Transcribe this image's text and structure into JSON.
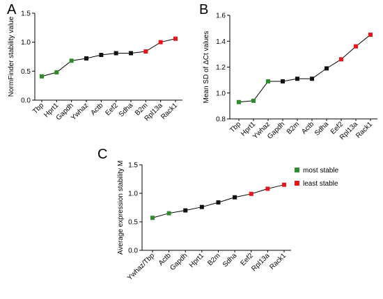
{
  "colors": {
    "most_stable": "#2e8b2e",
    "least_stable": "#e8161b",
    "neutral": "#111111"
  },
  "chart_data": [
    {
      "panel": "A",
      "type": "line",
      "ylabel": "NormFinder stability value",
      "ylim": [
        0,
        1.5
      ],
      "yticks": [
        0.0,
        0.5,
        1.0,
        1.5
      ],
      "categories": [
        "Tbp",
        "Hprt1",
        "Gapdh",
        "Ywhaz",
        "Actb",
        "Eef2",
        "Sdha",
        "B2m",
        "Rpl13a",
        "Rack1"
      ],
      "values": [
        0.41,
        0.48,
        0.68,
        0.72,
        0.78,
        0.81,
        0.81,
        0.84,
        1.0,
        1.06
      ],
      "marker_groups": [
        "most",
        "most",
        "most",
        "neutral",
        "neutral",
        "neutral",
        "neutral",
        "least",
        "least",
        "least"
      ]
    },
    {
      "panel": "B",
      "type": "line",
      "ylabel": "Mean SD of ΔCt values",
      "ylim": [
        0.8,
        1.6
      ],
      "yticks": [
        0.8,
        1.0,
        1.2,
        1.4,
        1.6
      ],
      "categories": [
        "Tbp",
        "Hprt1",
        "Ywhaz",
        "Gapdh",
        "B2m",
        "Actb",
        "Sdha",
        "Eef2",
        "Rpl13a",
        "Rack1"
      ],
      "values": [
        0.93,
        0.94,
        1.09,
        1.09,
        1.11,
        1.11,
        1.19,
        1.26,
        1.36,
        1.45
      ],
      "marker_groups": [
        "most",
        "most",
        "most",
        "neutral",
        "neutral",
        "neutral",
        "neutral",
        "least",
        "least",
        "least"
      ]
    },
    {
      "panel": "C",
      "type": "line",
      "ylabel": "Average expression stability M",
      "ylim": [
        0,
        1.5
      ],
      "yticks": [
        0.0,
        0.5,
        1.0,
        1.5
      ],
      "categories": [
        "Ywhaz/Tbp",
        "Actb",
        "Gapdh",
        "Hprt1",
        "B2m",
        "Sdha",
        "Eef2",
        "Rpl13a",
        "Rack1"
      ],
      "values": [
        0.57,
        0.65,
        0.7,
        0.76,
        0.84,
        0.93,
        0.99,
        1.08,
        1.15
      ],
      "marker_groups": [
        "most",
        "most",
        "neutral",
        "neutral",
        "neutral",
        "neutral",
        "least",
        "least",
        "least"
      ],
      "legend": [
        {
          "group": "most",
          "label": "most stable"
        },
        {
          "group": "least",
          "label": "least stable"
        }
      ],
      "legend_position": "top-right"
    }
  ]
}
